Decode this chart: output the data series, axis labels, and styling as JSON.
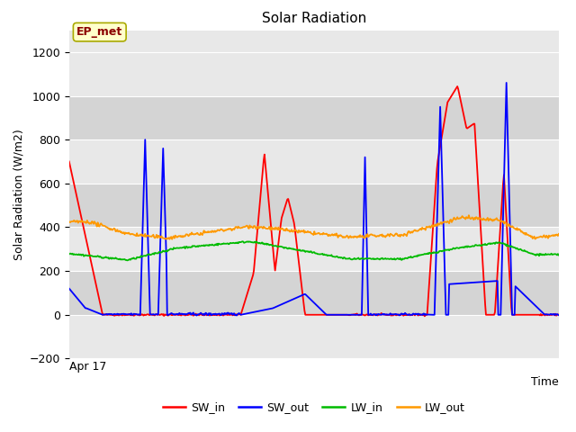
{
  "title": "Solar Radiation",
  "ylabel": "Solar Radiation (W/m2)",
  "xlabel": "Time",
  "ylim": [
    -200,
    1300
  ],
  "yticks": [
    -200,
    0,
    200,
    400,
    600,
    800,
    1000,
    1200
  ],
  "annotation_text": "EP_met",
  "annotation_color": "#8B0000",
  "annotation_bg": "#FFFFCC",
  "annotation_edge": "#AAAA00",
  "line_colors": {
    "SW_in": "#FF0000",
    "SW_out": "#0000FF",
    "LW_in": "#00BB00",
    "LW_out": "#FF9900"
  },
  "xlabel_date": "Apr 17",
  "plot_bg": "#E8E8E8",
  "grid_color": "#FFFFFF",
  "band_color": "#D8D8D8",
  "linewidth": 1.3
}
